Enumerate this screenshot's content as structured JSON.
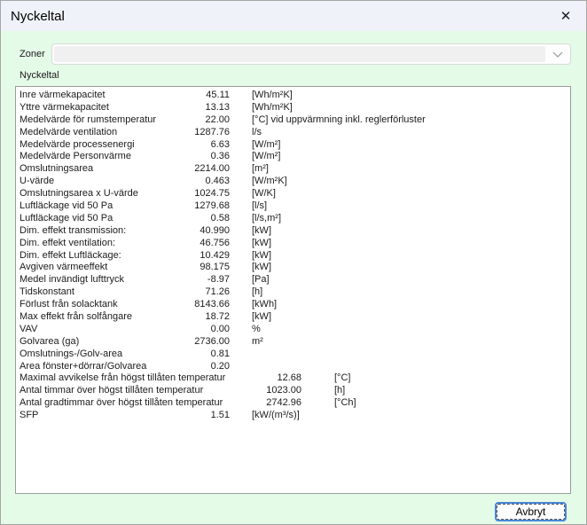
{
  "window": {
    "title": "Nyckeltal",
    "close_icon": "✕"
  },
  "zoner": {
    "label": "Zoner",
    "value": ""
  },
  "section": {
    "label": "Nyckeltal"
  },
  "list": {
    "rows": [
      {
        "label": "Inre värmekapacitet",
        "value": "45.11",
        "unit": "[Wh/m²K]"
      },
      {
        "label": "Yttre värmekapacitet",
        "value": "13.13",
        "unit": "[Wh/m²K]"
      },
      {
        "label": "Medelvärde för rumstemperatur",
        "value": "22.00",
        "unit": "[°C] vid uppvärmning inkl. reglerförluster"
      },
      {
        "label": "Medelvärde ventilation",
        "value": "1287.76",
        "unit": "l/s"
      },
      {
        "label": "Medelvärde processenergi",
        "value": "6.63",
        "unit": "[W/m²]"
      },
      {
        "label": "Medelvärde Personvärme",
        "value": "0.36",
        "unit": "[W/m²]"
      },
      {
        "label": "Omslutningsarea",
        "value": "2214.00",
        "unit": "[m²]"
      },
      {
        "label": "U-värde",
        "value": "0.463",
        "unit": "[W/m²K]"
      },
      {
        "label": "Omslutningsarea x U-värde",
        "value": "1024.75",
        "unit": "[W/K]"
      },
      {
        "label": "Luftläckage vid 50 Pa",
        "value": "1279.68",
        "unit": "[l/s]"
      },
      {
        "label": "Luftläckage vid 50 Pa",
        "value": "0.58",
        "unit": "[l/s,m²]"
      },
      {
        "label": "Dim. effekt transmission:",
        "value": "40.990",
        "unit": "[kW]"
      },
      {
        "label": "Dim. effekt ventilation:",
        "value": "46.756",
        "unit": "[kW]"
      },
      {
        "label": "Dim. effekt Luftläckage:",
        "value": "10.429",
        "unit": "[kW]"
      },
      {
        "label": "Avgiven värmeeffekt",
        "value": "98.175",
        "unit": "[kW]"
      },
      {
        "label": "Medel invändigt lufttryck",
        "value": "-8.97",
        "unit": "[Pa]"
      },
      {
        "label": "Tidskonstant",
        "value": "71.26",
        "unit": "[h]"
      },
      {
        "label": "Förlust från solacktank",
        "value": "8143.66",
        "unit": "[kWh]"
      },
      {
        "label": "Max effekt från solfångare",
        "value": "18.72",
        "unit": "[kW]"
      },
      {
        "label": "VAV",
        "value": "0.00",
        "unit": "%"
      },
      {
        "label": "Golvarea (ga)",
        "value": "2736.00",
        "unit": "m²"
      },
      {
        "label": "Omslutnings-/Golv-area",
        "value": "0.81",
        "unit": ""
      },
      {
        "label": "Area fönster+dörrar/Golvarea",
        "value": "0.20",
        "unit": ""
      },
      {
        "label": "Maximal avvikelse från högst tillåten temperatur",
        "value": "12.68",
        "unit": "[°C]",
        "wide": true
      },
      {
        "label": "Antal timmar över högst tillåten temperatur",
        "value": "1023.00",
        "unit": "[h]",
        "wide": true
      },
      {
        "label": "Antal gradtimmar över högst tillåten temperatur",
        "value": "2742.96",
        "unit": "[°Ch]",
        "wide": true
      },
      {
        "label": "SFP",
        "value": "1.51",
        "unit": "[kW/(m³/s)]"
      }
    ]
  },
  "footer": {
    "cancel_label": "Avbryt"
  },
  "colors": {
    "body_bg": "#e4fbe8",
    "titlebar_bg": "#f0f2fa",
    "accent_focus": "#4a86d8",
    "list_border": "#9b9b9b",
    "window_border": "#a6a6a6"
  }
}
